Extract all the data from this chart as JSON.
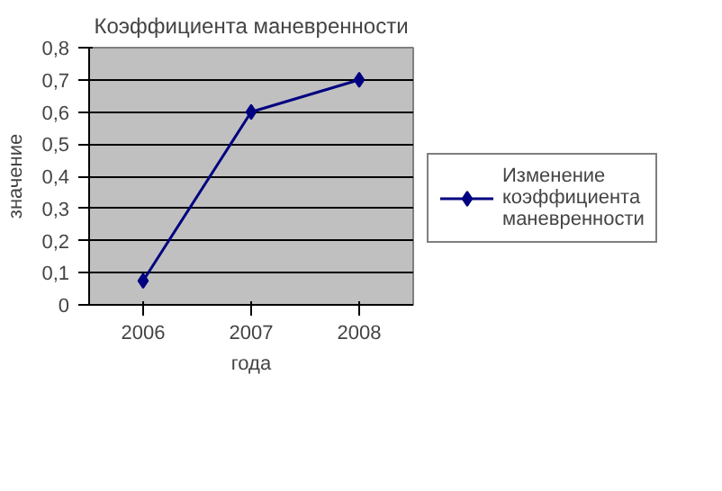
{
  "chart_data": {
    "type": "line",
    "title": "Коэффициента маневренности",
    "xlabel": "года",
    "ylabel": "значение",
    "categories": [
      "2006",
      "2007",
      "2008"
    ],
    "series": [
      {
        "name": "Изменение коэффициента маневренности",
        "color": "#000080",
        "values": [
          0.075,
          0.6,
          0.7
        ]
      }
    ],
    "ylim": [
      0,
      0.8
    ],
    "yticks": [
      {
        "value": 0,
        "label": "0"
      },
      {
        "value": 0.1,
        "label": "0,1"
      },
      {
        "value": 0.2,
        "label": "0,2"
      },
      {
        "value": 0.3,
        "label": "0,3"
      },
      {
        "value": 0.4,
        "label": "0,4"
      },
      {
        "value": 0.5,
        "label": "0,5"
      },
      {
        "value": 0.6,
        "label": "0,6"
      },
      {
        "value": 0.7,
        "label": "0,7"
      },
      {
        "value": 0.8,
        "label": "0,8"
      }
    ],
    "grid": "y",
    "legend": "right",
    "marker": "diamond",
    "line_style": "solid"
  }
}
